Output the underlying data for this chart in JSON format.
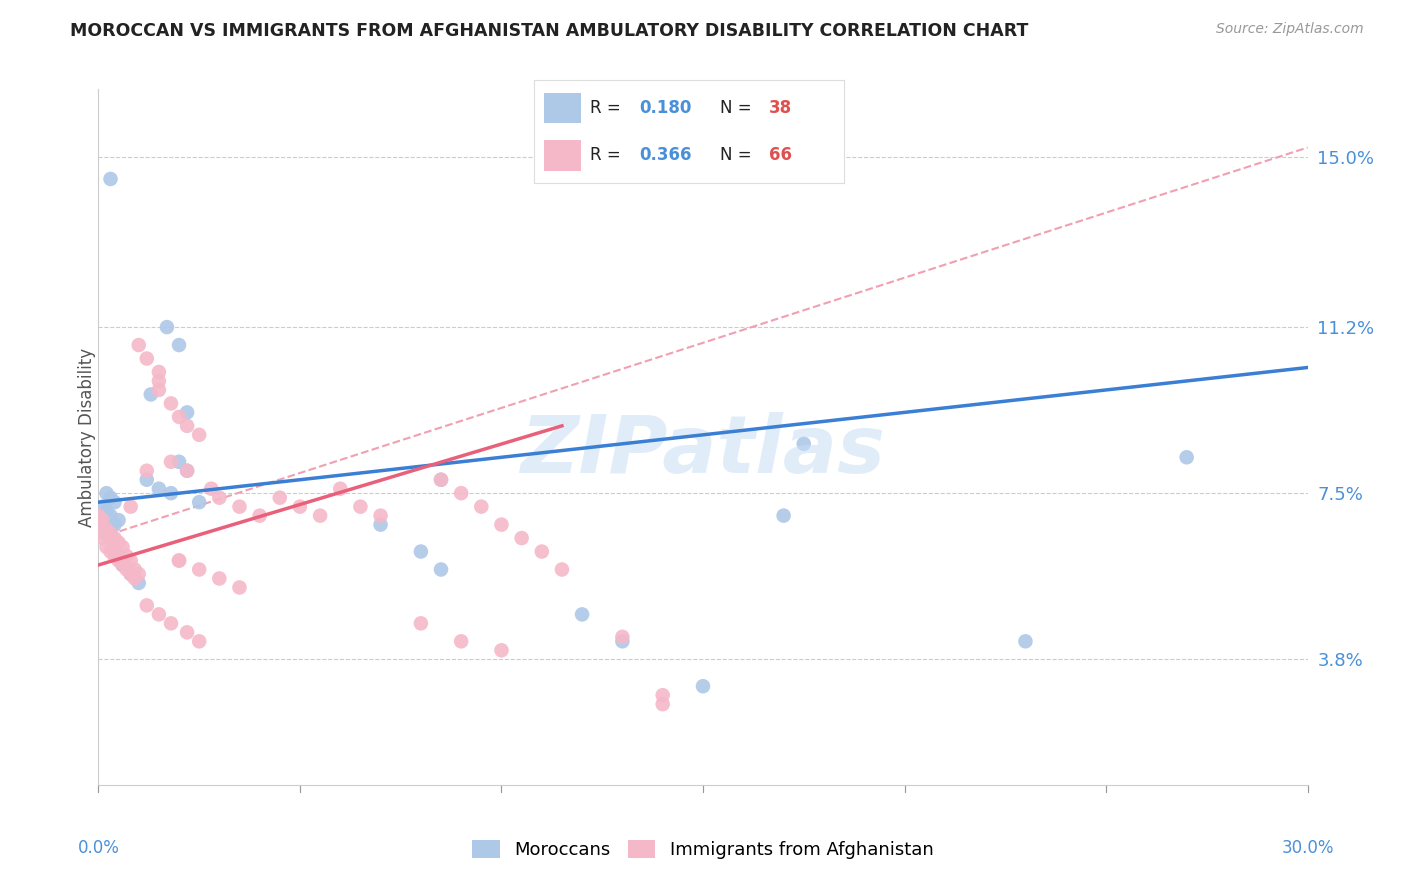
{
  "title": "MOROCCAN VS IMMIGRANTS FROM AFGHANISTAN AMBULATORY DISABILITY CORRELATION CHART",
  "source": "Source: ZipAtlas.com",
  "ylabel": "Ambulatory Disability",
  "ytick_labels": [
    "3.8%",
    "7.5%",
    "11.2%",
    "15.0%"
  ],
  "ytick_values": [
    0.038,
    0.075,
    0.112,
    0.15
  ],
  "xlim": [
    0.0,
    0.3
  ],
  "ylim": [
    0.01,
    0.165
  ],
  "legend_labels": [
    "Moroccans",
    "Immigrants from Afghanistan"
  ],
  "blue_color": "#aec8e8",
  "pink_color": "#f5b8c8",
  "blue_line_color": "#3a7fd4",
  "pink_line_color": "#e8607a",
  "dashed_line_color": "#f0a0b0",
  "moroccan_points": [
    [
      0.003,
      0.145
    ],
    [
      0.085,
      0.078
    ],
    [
      0.017,
      0.112
    ],
    [
      0.02,
      0.108
    ],
    [
      0.013,
      0.097
    ],
    [
      0.022,
      0.093
    ],
    [
      0.002,
      0.075
    ],
    [
      0.003,
      0.074
    ],
    [
      0.004,
      0.073
    ],
    [
      0.001,
      0.072
    ],
    [
      0.002,
      0.071
    ],
    [
      0.003,
      0.07
    ],
    [
      0.005,
      0.069
    ],
    [
      0.004,
      0.068
    ],
    [
      0.003,
      0.067
    ],
    [
      0.002,
      0.066
    ],
    [
      0.003,
      0.065
    ],
    [
      0.004,
      0.063
    ],
    [
      0.005,
      0.061
    ],
    [
      0.006,
      0.059
    ],
    [
      0.008,
      0.057
    ],
    [
      0.01,
      0.055
    ],
    [
      0.012,
      0.078
    ],
    [
      0.015,
      0.076
    ],
    [
      0.018,
      0.075
    ],
    [
      0.02,
      0.082
    ],
    [
      0.022,
      0.08
    ],
    [
      0.025,
      0.073
    ],
    [
      0.07,
      0.068
    ],
    [
      0.08,
      0.062
    ],
    [
      0.085,
      0.058
    ],
    [
      0.13,
      0.042
    ],
    [
      0.15,
      0.032
    ],
    [
      0.175,
      0.086
    ],
    [
      0.23,
      0.042
    ],
    [
      0.27,
      0.083
    ],
    [
      0.17,
      0.07
    ],
    [
      0.12,
      0.048
    ]
  ],
  "afghan_points": [
    [
      0.0,
      0.068
    ],
    [
      0.001,
      0.065
    ],
    [
      0.002,
      0.063
    ],
    [
      0.003,
      0.062
    ],
    [
      0.004,
      0.061
    ],
    [
      0.005,
      0.06
    ],
    [
      0.006,
      0.059
    ],
    [
      0.007,
      0.058
    ],
    [
      0.008,
      0.057
    ],
    [
      0.009,
      0.056
    ],
    [
      0.0,
      0.07
    ],
    [
      0.001,
      0.069
    ],
    [
      0.002,
      0.067
    ],
    [
      0.003,
      0.066
    ],
    [
      0.004,
      0.065
    ],
    [
      0.005,
      0.064
    ],
    [
      0.006,
      0.063
    ],
    [
      0.007,
      0.061
    ],
    [
      0.008,
      0.06
    ],
    [
      0.009,
      0.058
    ],
    [
      0.01,
      0.057
    ],
    [
      0.012,
      0.08
    ],
    [
      0.015,
      0.098
    ],
    [
      0.018,
      0.095
    ],
    [
      0.02,
      0.092
    ],
    [
      0.022,
      0.09
    ],
    [
      0.025,
      0.088
    ],
    [
      0.028,
      0.076
    ],
    [
      0.03,
      0.074
    ],
    [
      0.035,
      0.072
    ],
    [
      0.04,
      0.07
    ],
    [
      0.045,
      0.074
    ],
    [
      0.05,
      0.072
    ],
    [
      0.055,
      0.07
    ],
    [
      0.06,
      0.076
    ],
    [
      0.065,
      0.072
    ],
    [
      0.07,
      0.07
    ],
    [
      0.02,
      0.06
    ],
    [
      0.025,
      0.058
    ],
    [
      0.03,
      0.056
    ],
    [
      0.035,
      0.054
    ],
    [
      0.015,
      0.1
    ],
    [
      0.018,
      0.082
    ],
    [
      0.022,
      0.08
    ],
    [
      0.012,
      0.05
    ],
    [
      0.015,
      0.048
    ],
    [
      0.018,
      0.046
    ],
    [
      0.022,
      0.044
    ],
    [
      0.025,
      0.042
    ],
    [
      0.008,
      0.072
    ],
    [
      0.01,
      0.108
    ],
    [
      0.012,
      0.105
    ],
    [
      0.015,
      0.102
    ],
    [
      0.02,
      0.06
    ],
    [
      0.085,
      0.078
    ],
    [
      0.09,
      0.075
    ],
    [
      0.095,
      0.072
    ],
    [
      0.1,
      0.068
    ],
    [
      0.105,
      0.065
    ],
    [
      0.11,
      0.062
    ],
    [
      0.115,
      0.058
    ],
    [
      0.14,
      0.03
    ],
    [
      0.14,
      0.028
    ],
    [
      0.08,
      0.046
    ],
    [
      0.09,
      0.042
    ],
    [
      0.13,
      0.043
    ],
    [
      0.1,
      0.04
    ]
  ],
  "blue_trend_x": [
    0.0,
    0.3
  ],
  "blue_trend_y": [
    0.073,
    0.103
  ],
  "pink_trend_x": [
    0.0,
    0.115
  ],
  "pink_trend_y": [
    0.059,
    0.09
  ],
  "dashed_trend_x": [
    0.0,
    0.3
  ],
  "dashed_trend_y": [
    0.065,
    0.152
  ],
  "xtick_positions": [
    0.0,
    0.05,
    0.1,
    0.15,
    0.2,
    0.25,
    0.3
  ],
  "xlabel_bottom_left": "0.0%",
  "xlabel_bottom_right": "30.0%"
}
